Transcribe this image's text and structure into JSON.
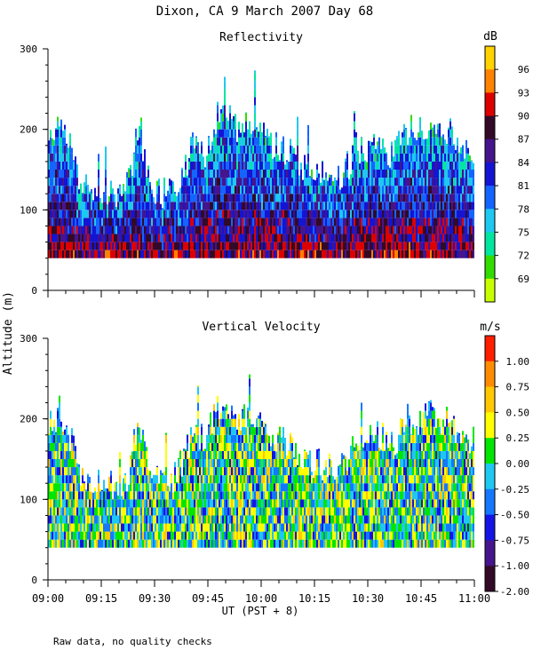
{
  "title": "Dixon, CA  9 March 2007  Day  68",
  "ylabel": "Altitude (m)",
  "xlabel": "UT  (PST + 8)",
  "footnote": "Raw data, no quality checks",
  "x_ticks": [
    "09:00",
    "09:15",
    "09:30",
    "09:45",
    "10:00",
    "10:15",
    "10:30",
    "10:45",
    "11:00"
  ],
  "chart_data": [
    {
      "type": "heatmap",
      "title": "Reflectivity",
      "units": "dB",
      "xlabel": "UT  (PST + 8)",
      "ylabel": "Altitude (m)",
      "xlim": [
        "09:00",
        "11:00"
      ],
      "ylim": [
        0,
        300
      ],
      "y_ticks": [
        0,
        100,
        200,
        300
      ],
      "colorbar_ticks": [
        69,
        72,
        75,
        78,
        81,
        84,
        87,
        90,
        93,
        96
      ],
      "colorbar_colors": [
        "#c8ff00",
        "#32dc00",
        "#00e6a0",
        "#1ec8f0",
        "#1464ff",
        "#1414d2",
        "#46148c",
        "#320a28",
        "#dc0000",
        "#ff8200",
        "#ffd200"
      ],
      "data_top_altitude_samples": [
        180,
        215,
        175,
        130,
        120,
        115,
        120,
        125,
        200,
        130,
        120,
        125,
        150,
        180,
        170,
        215,
        220,
        195,
        205,
        200,
        180,
        175,
        165,
        150,
        145,
        140,
        140,
        160,
        175,
        180,
        175,
        170,
        200,
        200,
        205,
        200,
        195,
        180,
        175
      ]
    },
    {
      "type": "heatmap",
      "title": "Vertical Velocity",
      "units": "m/s",
      "xlabel": "UT  (PST + 8)",
      "ylabel": "Altitude (m)",
      "xlim": [
        "09:00",
        "11:00"
      ],
      "ylim": [
        0,
        300
      ],
      "y_ticks": [
        0,
        100,
        200,
        300
      ],
      "colorbar_ticks": [
        "1.00",
        "0.75",
        "0.50",
        "0.25",
        "0.00",
        "-0.25",
        "-0.50",
        "-0.75",
        "-1.00",
        "-2.00"
      ],
      "colorbar_colors": [
        "#ff1e00",
        "#ff8c00",
        "#ffc800",
        "#ffff00",
        "#00e600",
        "#1ec8f0",
        "#1478ff",
        "#1414e6",
        "#46148c",
        "#320a28"
      ],
      "data_top_altitude_samples": [
        180,
        215,
        175,
        130,
        120,
        115,
        120,
        125,
        200,
        130,
        120,
        125,
        150,
        180,
        170,
        215,
        220,
        195,
        205,
        200,
        180,
        175,
        165,
        150,
        145,
        140,
        140,
        160,
        175,
        180,
        175,
        170,
        200,
        200,
        205,
        200,
        195,
        180,
        175
      ]
    }
  ]
}
